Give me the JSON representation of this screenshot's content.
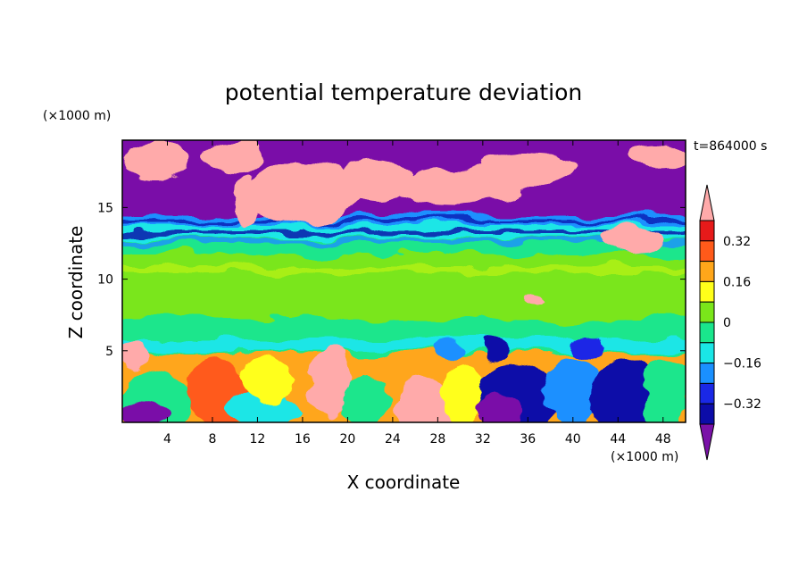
{
  "chart_data": {
    "type": "heatmap",
    "title": "potential temperature deviation",
    "xlabel": "X coordinate",
    "ylabel": "Z coordinate",
    "x_unit_label": "(×1000 m)",
    "y_unit_label": "(×1000 m)",
    "time_label": "t=864000 s",
    "xlim": [
      0,
      50
    ],
    "ylim": [
      0,
      19.7
    ],
    "x_ticks": [
      4,
      8,
      12,
      16,
      20,
      24,
      28,
      32,
      36,
      40,
      44,
      48
    ],
    "y_ticks": [
      5,
      10,
      15
    ],
    "colorbar": {
      "levels": [
        -0.4,
        -0.32,
        -0.24,
        -0.16,
        -0.08,
        0,
        0.08,
        0.16,
        0.24,
        0.32,
        0.4
      ],
      "labeled_levels": [
        -0.32,
        -0.16,
        0,
        0.16,
        0.32
      ],
      "colors": [
        "#7a11a8",
        "#0c0ca8",
        "#1a28e6",
        "#1a90ff",
        "#1ae6e6",
        "#1ae68c",
        "#7ae61a",
        "#ffff1a",
        "#ffa61a",
        "#ff5a1a",
        "#e61a1a",
        "#ffaaaa"
      ],
      "extend": "both"
    },
    "layers": [
      {
        "z": [
          0,
          4.8
        ],
        "description_value": "mixed large anomalies"
      },
      {
        "z": [
          4.8,
          8
        ],
        "value": 0.04
      },
      {
        "z": [
          8,
          12
        ],
        "value": 0.06
      },
      {
        "z": [
          12,
          14.5
        ],
        "value": -0.08
      },
      {
        "z": [
          14.5,
          19.7
        ],
        "value": -0.45
      }
    ]
  }
}
